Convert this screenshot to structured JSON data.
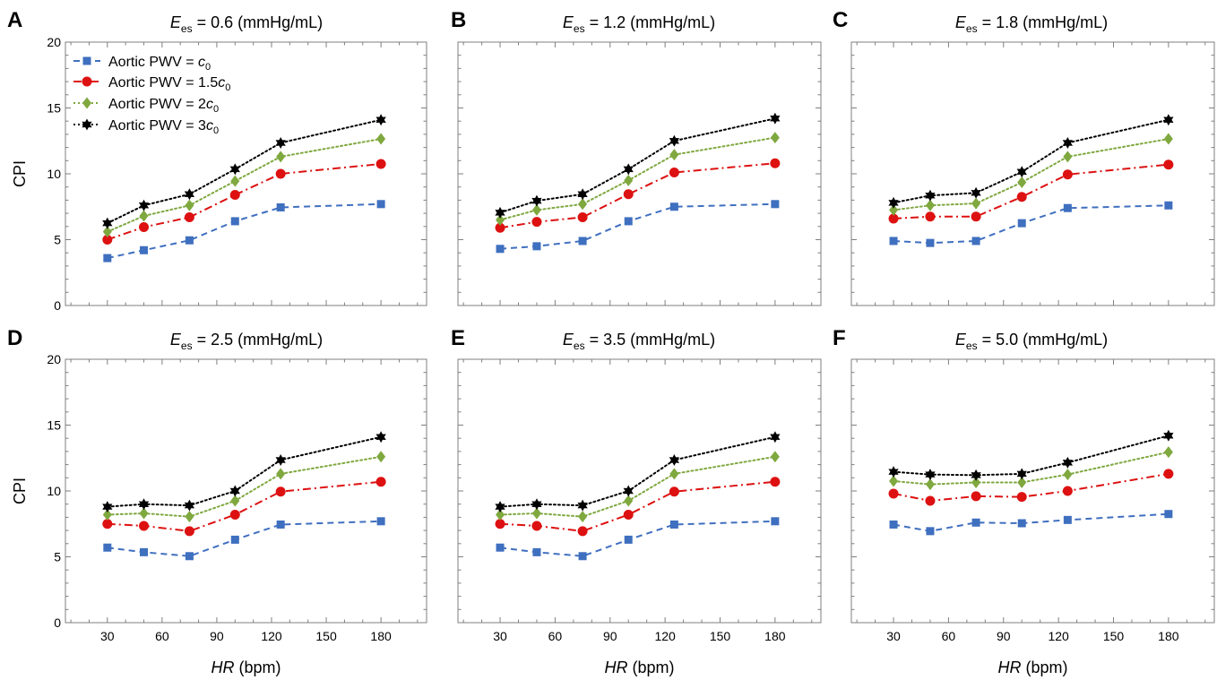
{
  "figure": {
    "x_axis_label": {
      "italic": "HR",
      "rest": " (bpm)"
    },
    "y_axis_label": "CPI",
    "title_var": {
      "main": "E",
      "sub": "es"
    }
  },
  "legend": {
    "prefix": "Aortic PWV = ",
    "entries": [
      {
        "coef": "",
        "var": "c",
        "sub": "0"
      },
      {
        "coef": "1.5",
        "var": "c",
        "sub": "0"
      },
      {
        "coef": "2",
        "var": "c",
        "sub": "0"
      },
      {
        "coef": "3",
        "var": "c",
        "sub": "0"
      }
    ]
  },
  "styles": {
    "series": [
      {
        "color": "#3f6fbf",
        "marker": "square",
        "dash": "dashed"
      },
      {
        "color": "#dd1111",
        "marker": "circle",
        "dash": "dashdot"
      },
      {
        "color": "#7fa83f",
        "marker": "diamond",
        "dash": "dotted"
      },
      {
        "color": "#000000",
        "marker": "star",
        "dash": "dotted"
      }
    ]
  },
  "chart_data": [
    {
      "type": "line",
      "panel": "A",
      "title_value": " = 0.6 (mmHg/mL)",
      "x": [
        30,
        50,
        75,
        100,
        125,
        180
      ],
      "xticks": [
        30,
        60,
        90,
        120,
        150,
        180
      ],
      "yticks": [
        0,
        5,
        10,
        15,
        20
      ],
      "xlim": [
        7,
        205
      ],
      "ylim": [
        0,
        20
      ],
      "series": [
        {
          "name": "Aortic PWV = c0",
          "values": [
            3.6,
            4.2,
            4.95,
            6.4,
            7.45,
            7.7
          ]
        },
        {
          "name": "Aortic PWV = 1.5c0",
          "values": [
            5.0,
            5.95,
            6.7,
            8.4,
            10.0,
            10.75
          ]
        },
        {
          "name": "Aortic PWV = 2c0",
          "values": [
            5.6,
            6.8,
            7.6,
            9.45,
            11.3,
            12.65
          ]
        },
        {
          "name": "Aortic PWV = 3c0",
          "values": [
            6.25,
            7.6,
            8.45,
            10.35,
            12.35,
            14.1
          ]
        }
      ]
    },
    {
      "type": "line",
      "panel": "B",
      "title_value": " = 1.2 (mmHg/mL)",
      "x": [
        30,
        50,
        75,
        100,
        125,
        180
      ],
      "xticks": [
        30,
        60,
        90,
        120,
        150,
        180
      ],
      "yticks": [],
      "xlim": [
        7,
        205
      ],
      "ylim": [
        0,
        20
      ],
      "series": [
        {
          "name": "Aortic PWV = c0",
          "values": [
            4.3,
            4.5,
            4.9,
            6.4,
            7.5,
            7.7
          ]
        },
        {
          "name": "Aortic PWV = 1.5c0",
          "values": [
            5.9,
            6.35,
            6.7,
            8.45,
            10.1,
            10.8
          ]
        },
        {
          "name": "Aortic PWV = 2c0",
          "values": [
            6.5,
            7.25,
            7.7,
            9.5,
            11.45,
            12.75
          ]
        },
        {
          "name": "Aortic PWV = 3c0",
          "values": [
            7.05,
            7.95,
            8.45,
            10.35,
            12.5,
            14.2
          ]
        }
      ]
    },
    {
      "type": "line",
      "panel": "C",
      "title_value": " = 1.8 (mmHg/mL)",
      "x": [
        30,
        50,
        75,
        100,
        125,
        180
      ],
      "xticks": [
        30,
        60,
        90,
        120,
        150,
        180
      ],
      "yticks": [],
      "xlim": [
        7,
        205
      ],
      "ylim": [
        0,
        20
      ],
      "series": [
        {
          "name": "Aortic PWV = c0",
          "values": [
            4.9,
            4.75,
            4.9,
            6.25,
            7.4,
            7.6
          ]
        },
        {
          "name": "Aortic PWV = 1.5c0",
          "values": [
            6.6,
            6.75,
            6.75,
            8.25,
            9.95,
            10.7
          ]
        },
        {
          "name": "Aortic PWV = 2c0",
          "values": [
            7.25,
            7.6,
            7.75,
            9.35,
            11.3,
            12.65
          ]
        },
        {
          "name": "Aortic PWV = 3c0",
          "values": [
            7.8,
            8.35,
            8.55,
            10.15,
            12.35,
            14.1
          ]
        }
      ]
    },
    {
      "type": "line",
      "panel": "D",
      "title_value": " = 2.5 (mmHg/mL)",
      "x": [
        30,
        50,
        75,
        100,
        125,
        180
      ],
      "xticks": [
        30,
        60,
        90,
        120,
        150,
        180
      ],
      "yticks": [
        0,
        5,
        10,
        15,
        20
      ],
      "xlim": [
        7,
        205
      ],
      "ylim": [
        0,
        20
      ],
      "series": [
        {
          "name": "Aortic PWV = c0",
          "values": [
            5.7,
            5.35,
            5.05,
            6.3,
            7.45,
            7.7
          ]
        },
        {
          "name": "Aortic PWV = 1.5c0",
          "values": [
            7.5,
            7.35,
            6.95,
            8.2,
            9.95,
            10.7
          ]
        },
        {
          "name": "Aortic PWV = 2c0",
          "values": [
            8.2,
            8.3,
            8.05,
            9.25,
            11.3,
            12.6
          ]
        },
        {
          "name": "Aortic PWV = 3c0",
          "values": [
            8.8,
            9.0,
            8.9,
            10.0,
            12.35,
            14.1
          ]
        }
      ]
    },
    {
      "type": "line",
      "panel": "E",
      "title_value": " = 3.5 (mmHg/mL)",
      "x": [
        30,
        50,
        75,
        100,
        125,
        180
      ],
      "xticks": [
        30,
        60,
        90,
        120,
        150,
        180
      ],
      "yticks": [],
      "xlim": [
        7,
        205
      ],
      "ylim": [
        0,
        20
      ],
      "series": [
        {
          "name": "Aortic PWV = c0",
          "values": [
            5.7,
            5.35,
            5.05,
            6.3,
            7.45,
            7.7
          ]
        },
        {
          "name": "Aortic PWV = 1.5c0",
          "values": [
            7.5,
            7.35,
            6.95,
            8.2,
            9.95,
            10.7
          ]
        },
        {
          "name": "Aortic PWV = 2c0",
          "values": [
            8.2,
            8.3,
            8.05,
            9.25,
            11.3,
            12.6
          ]
        },
        {
          "name": "Aortic PWV = 3c0",
          "values": [
            8.8,
            9.0,
            8.9,
            10.0,
            12.35,
            14.1
          ]
        }
      ]
    },
    {
      "type": "line",
      "panel": "F",
      "title_value": " = 5.0 (mmHg/mL)",
      "x": [
        30,
        50,
        75,
        100,
        125,
        180
      ],
      "xticks": [
        30,
        60,
        90,
        120,
        150,
        180
      ],
      "yticks": [],
      "xlim": [
        7,
        205
      ],
      "ylim": [
        0,
        20
      ],
      "series": [
        {
          "name": "Aortic PWV = c0",
          "values": [
            7.45,
            6.95,
            7.6,
            7.55,
            7.8,
            8.25
          ]
        },
        {
          "name": "Aortic PWV = 1.5c0",
          "values": [
            9.8,
            9.25,
            9.6,
            9.55,
            10.0,
            11.3
          ]
        },
        {
          "name": "Aortic PWV = 2c0",
          "values": [
            10.75,
            10.5,
            10.65,
            10.65,
            11.25,
            12.95
          ]
        },
        {
          "name": "Aortic PWV = 3c0",
          "values": [
            11.45,
            11.25,
            11.2,
            11.3,
            12.15,
            14.2
          ]
        }
      ]
    }
  ]
}
